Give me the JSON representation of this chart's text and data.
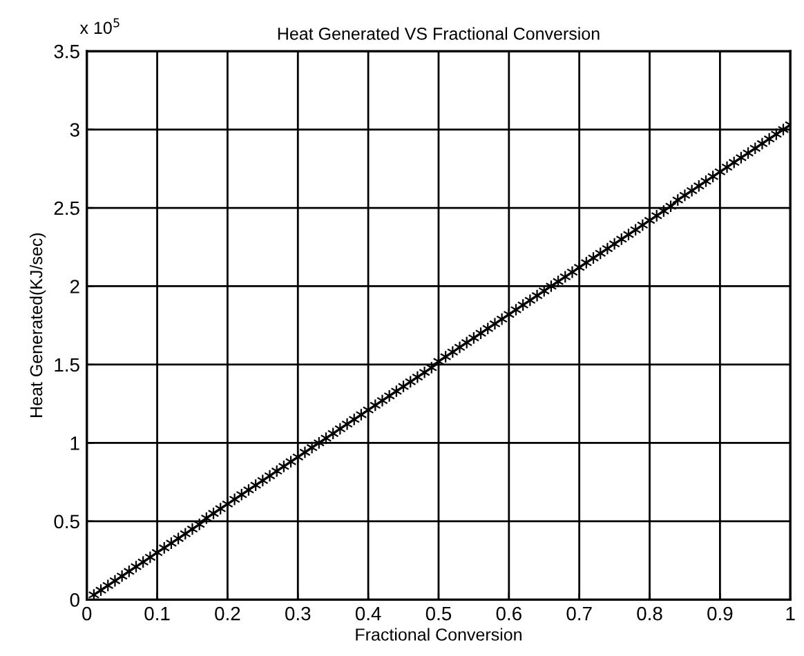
{
  "chart_data": {
    "type": "line",
    "title": "Heat Generated VS Fractional Conversion",
    "xlabel": "Fractional Conversion",
    "ylabel": "Heat Generated(KJ/sec)",
    "annotations": [
      "x 10$^{5}$"
    ],
    "x": [
      0.01,
      0.02,
      0.03,
      0.04,
      0.05,
      0.06,
      0.07,
      0.08,
      0.09,
      0.1,
      0.11,
      0.12,
      0.13,
      0.14,
      0.15,
      0.16,
      0.17,
      0.18,
      0.19,
      0.2,
      0.21,
      0.22,
      0.23,
      0.24,
      0.25,
      0.26,
      0.27,
      0.28,
      0.29,
      0.3,
      0.31,
      0.32,
      0.33,
      0.34,
      0.35,
      0.36,
      0.37,
      0.38,
      0.39,
      0.4,
      0.41,
      0.42,
      0.43,
      0.44,
      0.45,
      0.46,
      0.47,
      0.48,
      0.49,
      0.5,
      0.51,
      0.52,
      0.53,
      0.54,
      0.55,
      0.56,
      0.57,
      0.58,
      0.59,
      0.6,
      0.61,
      0.62,
      0.63,
      0.64,
      0.65,
      0.66,
      0.67,
      0.68,
      0.69,
      0.7,
      0.71,
      0.72,
      0.73,
      0.74,
      0.75,
      0.76,
      0.77,
      0.78,
      0.79,
      0.8,
      0.81,
      0.82,
      0.83,
      0.84,
      0.85,
      0.86,
      0.87,
      0.88,
      0.89,
      0.9,
      0.91,
      0.92,
      0.93,
      0.94,
      0.95,
      0.96,
      0.97,
      0.98,
      0.99,
      1.0
    ],
    "series": [
      {
        "color": "#000000",
        "values": [
          0.03,
          0.06,
          0.09,
          0.12,
          0.15,
          0.18,
          0.21,
          0.24,
          0.27,
          0.3,
          0.33,
          0.36,
          0.39,
          0.42,
          0.45,
          0.48,
          0.52,
          0.55,
          0.58,
          0.61,
          0.64,
          0.67,
          0.7,
          0.73,
          0.76,
          0.79,
          0.82,
          0.85,
          0.88,
          0.91,
          0.94,
          0.97,
          1.0,
          1.03,
          1.06,
          1.09,
          1.12,
          1.15,
          1.18,
          1.21,
          1.24,
          1.27,
          1.3,
          1.33,
          1.36,
          1.39,
          1.42,
          1.45,
          1.48,
          1.52,
          1.55,
          1.58,
          1.61,
          1.64,
          1.67,
          1.7,
          1.73,
          1.76,
          1.79,
          1.82,
          1.85,
          1.88,
          1.91,
          1.94,
          1.97,
          2.0,
          2.03,
          2.06,
          2.09,
          2.12,
          2.15,
          2.18,
          2.21,
          2.24,
          2.27,
          2.3,
          2.33,
          2.36,
          2.39,
          2.42,
          2.45,
          2.48,
          2.51,
          2.55,
          2.58,
          2.61,
          2.64,
          2.67,
          2.7,
          2.73,
          2.76,
          2.79,
          2.82,
          2.85,
          2.88,
          2.91,
          2.94,
          2.97,
          3.0,
          3.03
        ]
      }
    ],
    "xlim": [
      0,
      1
    ],
    "xticks": [
      0,
      0.1,
      0.2,
      0.3,
      0.4,
      0.5,
      0.6,
      0.7,
      0.8,
      0.9,
      1
    ],
    "ylim": [
      0,
      3.5
    ],
    "yticks": [
      0,
      0.5,
      1,
      1.5,
      2,
      2.5,
      3,
      3.5
    ],
    "grid": true,
    "marker": "cross",
    "line_style": "solid",
    "legend": false
  }
}
